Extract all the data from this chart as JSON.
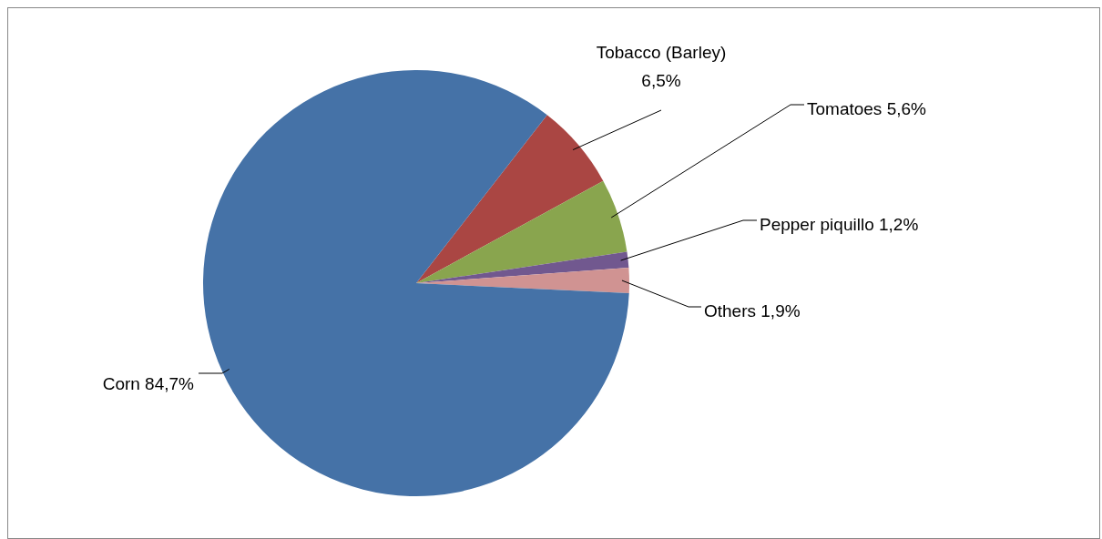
{
  "chart_data": {
    "type": "pie",
    "categories": [
      "Tobacco (Barley)",
      "Tomatoes",
      "Pepper piquillo",
      "Others",
      "Corn"
    ],
    "values": [
      6.5,
      5.6,
      1.2,
      1.9,
      84.7
    ],
    "value_labels": [
      "6,5%",
      "5,6%",
      "1,2%",
      "1,9%",
      "84,7%"
    ],
    "colors": [
      "#aa4643",
      "#89a54e",
      "#71588f",
      "#d09392",
      "#4572a7"
    ]
  }
}
